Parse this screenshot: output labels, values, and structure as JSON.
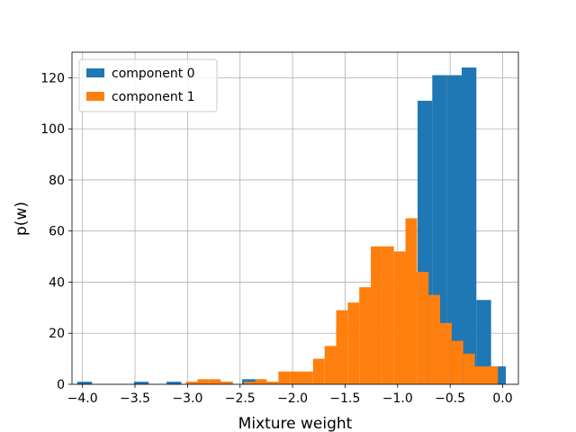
{
  "chart_data": {
    "type": "bar",
    "title": "",
    "xlabel": "Mixture weight",
    "ylabel": "p(w)",
    "xlim": [
      -4.1,
      0.15
    ],
    "ylim": [
      0,
      130
    ],
    "xticks": [
      -4.0,
      -3.5,
      -3.0,
      -2.5,
      -2.0,
      -1.5,
      -1.0,
      -0.5,
      0.0
    ],
    "xtick_labels": [
      "−4.0",
      "−3.5",
      "−3.0",
      "−2.5",
      "−2.0",
      "−1.5",
      "−1.0",
      "−0.5",
      "0.0"
    ],
    "yticks": [
      0,
      20,
      40,
      60,
      80,
      100,
      120
    ],
    "ytick_labels": [
      "0",
      "20",
      "40",
      "60",
      "80",
      "100",
      "120"
    ],
    "grid": true,
    "legend_position": "top-left",
    "series": [
      {
        "name": "component 0",
        "color": "#1f77b4",
        "bin_width": 0.14,
        "bins": [
          {
            "x": -3.98,
            "count": 1
          },
          {
            "x": -3.44,
            "count": 1
          },
          {
            "x": -3.13,
            "count": 1
          },
          {
            "x": -2.64,
            "count": 1
          },
          {
            "x": -2.41,
            "count": 2
          },
          {
            "x": -0.74,
            "count": 111
          },
          {
            "x": -0.6,
            "count": 121
          },
          {
            "x": -0.46,
            "count": 121
          },
          {
            "x": -0.32,
            "count": 124
          },
          {
            "x": -0.18,
            "count": 33
          },
          {
            "x": -0.04,
            "count": 7
          }
        ]
      },
      {
        "name": "component 1",
        "color": "#ff7f0e",
        "bin_width": 0.11,
        "bins": [
          {
            "x": -2.96,
            "count": 1
          },
          {
            "x": -2.85,
            "count": 2
          },
          {
            "x": -2.74,
            "count": 2
          },
          {
            "x": -2.63,
            "count": 1
          },
          {
            "x": -2.52,
            "count": 0
          },
          {
            "x": -2.41,
            "count": 1
          },
          {
            "x": -2.3,
            "count": 2
          },
          {
            "x": -2.19,
            "count": 1
          },
          {
            "x": -2.08,
            "count": 5
          },
          {
            "x": -1.97,
            "count": 5
          },
          {
            "x": -1.86,
            "count": 5
          },
          {
            "x": -1.75,
            "count": 10
          },
          {
            "x": -1.64,
            "count": 15
          },
          {
            "x": -1.53,
            "count": 29
          },
          {
            "x": -1.42,
            "count": 32
          },
          {
            "x": -1.31,
            "count": 38
          },
          {
            "x": -1.2,
            "count": 54
          },
          {
            "x": -1.09,
            "count": 54
          },
          {
            "x": -0.98,
            "count": 52
          },
          {
            "x": -0.87,
            "count": 65
          },
          {
            "x": -0.76,
            "count": 44
          },
          {
            "x": -0.65,
            "count": 35
          },
          {
            "x": -0.54,
            "count": 24
          },
          {
            "x": -0.43,
            "count": 17
          },
          {
            "x": -0.32,
            "count": 12
          },
          {
            "x": -0.21,
            "count": 7
          },
          {
            "x": -0.1,
            "count": 7
          }
        ]
      }
    ]
  }
}
